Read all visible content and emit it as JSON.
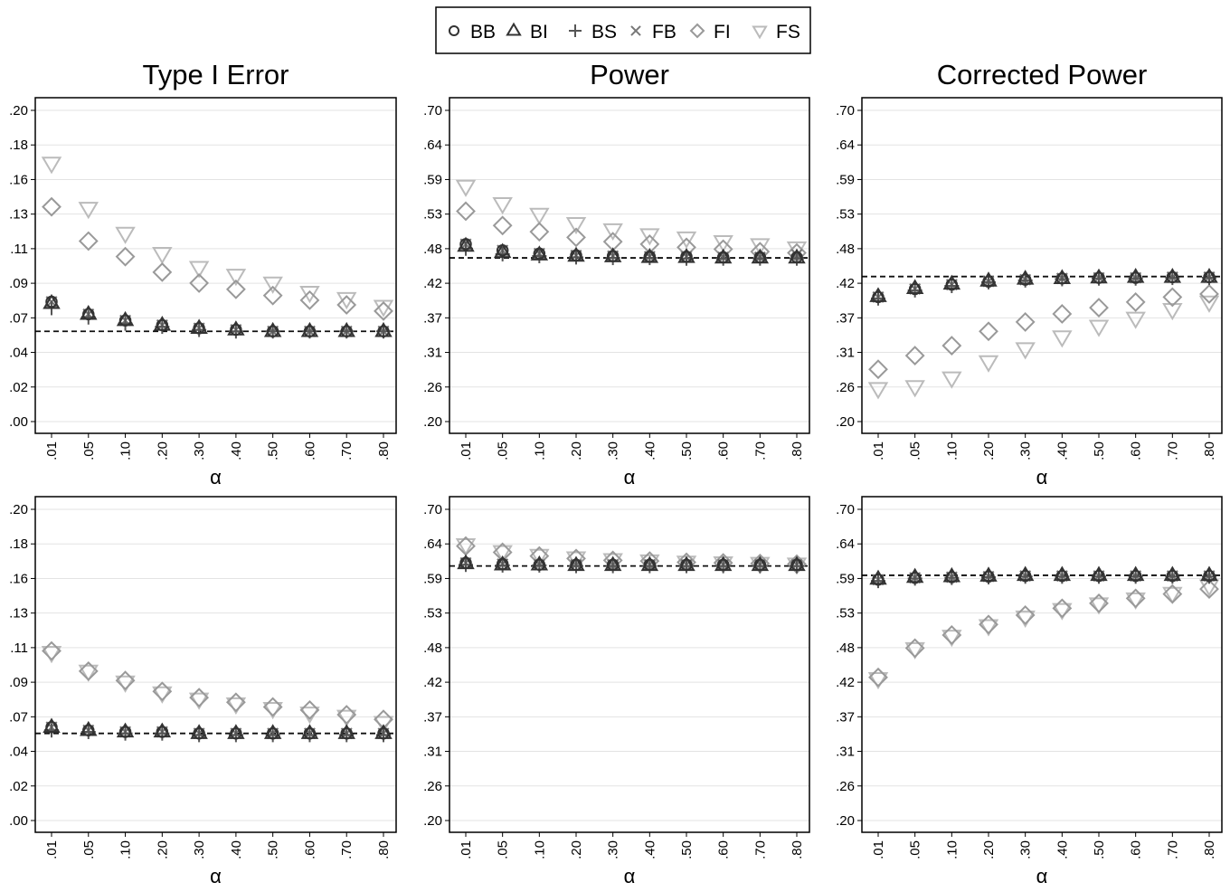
{
  "legend": {
    "placement": "top-center",
    "entries": [
      {
        "label": "BB",
        "marker": "circle-icon",
        "color": "#333333"
      },
      {
        "label": "BI",
        "marker": "triangle-icon",
        "color": "#333333"
      },
      {
        "label": "BS",
        "marker": "plus-icon",
        "color": "#555555"
      },
      {
        "label": "FB",
        "marker": "x-icon",
        "color": "#777777"
      },
      {
        "label": "FI",
        "marker": "diamond-icon",
        "color": "#999999"
      },
      {
        "label": "FS",
        "marker": "triangle-down-icon",
        "color": "#bbbbbb"
      }
    ]
  },
  "chart_data": [
    {
      "type": "scatter",
      "title": "Type I Error",
      "xlabel": "α",
      "categories": [
        ".01",
        ".05",
        ".10",
        ".20",
        ".30",
        ".40",
        ".50",
        ".60",
        ".70",
        ".80"
      ],
      "y_ticks": [
        ".00",
        ".02",
        ".04",
        ".07",
        ".09",
        ".11",
        ".13",
        ".16",
        ".18",
        ".20"
      ],
      "ylim": [
        0,
        0.2
      ],
      "grid": true,
      "reference_line": 0.058,
      "series": [
        {
          "name": "BB",
          "values": [
            0.077,
            0.069,
            0.065,
            0.062,
            0.06,
            0.059,
            0.058,
            0.058,
            0.058,
            0.058
          ]
        },
        {
          "name": "BI",
          "values": [
            0.076,
            0.069,
            0.065,
            0.062,
            0.06,
            0.059,
            0.058,
            0.058,
            0.058,
            0.058
          ]
        },
        {
          "name": "BS",
          "values": [
            0.073,
            0.067,
            0.063,
            0.061,
            0.059,
            0.058,
            0.058,
            0.058,
            0.058,
            0.058
          ]
        },
        {
          "name": "FB",
          "values": [
            0.077,
            0.069,
            0.065,
            0.062,
            0.06,
            0.059,
            0.058,
            0.058,
            0.058,
            0.058
          ]
        },
        {
          "name": "FI",
          "values": [
            0.138,
            0.116,
            0.106,
            0.096,
            0.089,
            0.085,
            0.081,
            0.078,
            0.075,
            0.071
          ]
        },
        {
          "name": "FS",
          "values": [
            0.166,
            0.137,
            0.121,
            0.108,
            0.099,
            0.094,
            0.089,
            0.083,
            0.079,
            0.074
          ]
        }
      ]
    },
    {
      "type": "scatter",
      "title": "Power",
      "xlabel": "α",
      "categories": [
        ".01",
        ".05",
        ".10",
        ".20",
        ".30",
        ".40",
        ".50",
        ".60",
        ".70",
        ".80"
      ],
      "y_ticks": [
        ".20",
        ".26",
        ".31",
        ".37",
        ".42",
        ".48",
        ".53",
        ".59",
        ".64",
        ".70"
      ],
      "ylim": [
        0.2,
        0.7
      ],
      "grid": true,
      "reference_line": 0.463,
      "series": [
        {
          "name": "BB",
          "values": [
            0.485,
            0.475,
            0.47,
            0.467,
            0.466,
            0.465,
            0.465,
            0.464,
            0.464,
            0.464
          ]
        },
        {
          "name": "BI",
          "values": [
            0.482,
            0.472,
            0.468,
            0.466,
            0.465,
            0.464,
            0.464,
            0.463,
            0.463,
            0.463
          ]
        },
        {
          "name": "BS",
          "values": [
            0.478,
            0.469,
            0.466,
            0.464,
            0.463,
            0.463,
            0.462,
            0.462,
            0.462,
            0.462
          ]
        },
        {
          "name": "FB",
          "values": [
            0.485,
            0.475,
            0.47,
            0.467,
            0.466,
            0.465,
            0.465,
            0.464,
            0.464,
            0.468
          ]
        },
        {
          "name": "FI",
          "values": [
            0.538,
            0.515,
            0.505,
            0.496,
            0.489,
            0.485,
            0.48,
            0.477,
            0.473,
            0.471
          ]
        },
        {
          "name": "FS",
          "values": [
            0.578,
            0.55,
            0.533,
            0.518,
            0.508,
            0.5,
            0.495,
            0.489,
            0.484,
            0.479
          ]
        }
      ]
    },
    {
      "type": "scatter",
      "title": "Corrected Power",
      "xlabel": "α",
      "categories": [
        ".01",
        ".05",
        ".10",
        ".20",
        ".30",
        ".40",
        ".50",
        ".60",
        ".70",
        ".80"
      ],
      "y_ticks": [
        ".20",
        ".26",
        ".31",
        ".37",
        ".42",
        ".48",
        ".53",
        ".59",
        ".64",
        ".70"
      ],
      "ylim": [
        0.2,
        0.7
      ],
      "grid": true,
      "reference_line": 0.433,
      "series": [
        {
          "name": "BB",
          "values": [
            0.4,
            0.413,
            0.42,
            0.425,
            0.428,
            0.43,
            0.431,
            0.431,
            0.432,
            0.432
          ]
        },
        {
          "name": "BI",
          "values": [
            0.401,
            0.414,
            0.421,
            0.426,
            0.429,
            0.43,
            0.431,
            0.432,
            0.432,
            0.432
          ]
        },
        {
          "name": "BS",
          "values": [
            0.398,
            0.411,
            0.418,
            0.424,
            0.427,
            0.429,
            0.43,
            0.43,
            0.431,
            0.431
          ]
        },
        {
          "name": "FB",
          "values": [
            0.4,
            0.413,
            0.42,
            0.425,
            0.428,
            0.43,
            0.431,
            0.431,
            0.432,
            0.432
          ]
        },
        {
          "name": "FI",
          "values": [
            0.284,
            0.306,
            0.322,
            0.345,
            0.36,
            0.373,
            0.383,
            0.392,
            0.4,
            0.405
          ]
        },
        {
          "name": "FS",
          "values": [
            0.253,
            0.256,
            0.27,
            0.296,
            0.317,
            0.336,
            0.353,
            0.366,
            0.38,
            0.392
          ]
        }
      ]
    },
    {
      "type": "scatter",
      "title": "",
      "xlabel": "α",
      "categories": [
        ".01",
        ".05",
        ".10",
        ".20",
        ".30",
        ".40",
        ".50",
        ".60",
        ".70",
        ".80"
      ],
      "y_ticks": [
        ".00",
        ".02",
        ".04",
        ".07",
        ".09",
        ".11",
        ".13",
        ".16",
        ".18",
        ".20"
      ],
      "ylim": [
        0,
        0.2
      ],
      "grid": true,
      "reference_line": 0.056,
      "series": [
        {
          "name": "BB",
          "values": [
            0.06,
            0.058,
            0.057,
            0.057,
            0.056,
            0.056,
            0.056,
            0.056,
            0.056,
            0.056
          ]
        },
        {
          "name": "BI",
          "values": [
            0.06,
            0.058,
            0.057,
            0.057,
            0.056,
            0.056,
            0.056,
            0.056,
            0.056,
            0.056
          ]
        },
        {
          "name": "BS",
          "values": [
            0.058,
            0.057,
            0.056,
            0.056,
            0.055,
            0.055,
            0.055,
            0.055,
            0.055,
            0.055
          ]
        },
        {
          "name": "FB",
          "values": [
            0.06,
            0.058,
            0.057,
            0.057,
            0.056,
            0.056,
            0.056,
            0.056,
            0.056,
            0.056
          ]
        },
        {
          "name": "FI",
          "values": [
            0.109,
            0.096,
            0.09,
            0.083,
            0.079,
            0.076,
            0.073,
            0.071,
            0.068,
            0.065
          ]
        },
        {
          "name": "FS",
          "values": [
            0.108,
            0.096,
            0.089,
            0.082,
            0.078,
            0.075,
            0.072,
            0.069,
            0.067,
            0.063
          ]
        }
      ]
    },
    {
      "type": "scatter",
      "title": "",
      "xlabel": "α",
      "categories": [
        ".01",
        ".05",
        ".10",
        ".20",
        ".30",
        ".40",
        ".50",
        ".60",
        ".70",
        ".80"
      ],
      "y_ticks": [
        ".20",
        ".26",
        ".31",
        ".37",
        ".42",
        ".48",
        ".53",
        ".59",
        ".64",
        ".70"
      ],
      "ylim": [
        0.2,
        0.7
      ],
      "grid": true,
      "reference_line": 0.609,
      "series": [
        {
          "name": "BB",
          "values": [
            0.614,
            0.612,
            0.611,
            0.611,
            0.611,
            0.611,
            0.611,
            0.611,
            0.611,
            0.611
          ]
        },
        {
          "name": "BI",
          "values": [
            0.613,
            0.611,
            0.611,
            0.61,
            0.61,
            0.61,
            0.61,
            0.61,
            0.61,
            0.61
          ]
        },
        {
          "name": "BS",
          "values": [
            0.611,
            0.61,
            0.61,
            0.609,
            0.609,
            0.609,
            0.609,
            0.609,
            0.609,
            0.609
          ]
        },
        {
          "name": "FB",
          "values": [
            0.614,
            0.612,
            0.611,
            0.611,
            0.611,
            0.611,
            0.611,
            0.611,
            0.611,
            0.611
          ]
        },
        {
          "name": "FI",
          "values": [
            0.641,
            0.631,
            0.625,
            0.621,
            0.618,
            0.617,
            0.615,
            0.614,
            0.613,
            0.612
          ]
        },
        {
          "name": "FS",
          "values": [
            0.643,
            0.632,
            0.626,
            0.622,
            0.619,
            0.617,
            0.615,
            0.614,
            0.613,
            0.612
          ]
        }
      ]
    },
    {
      "type": "scatter",
      "title": "",
      "xlabel": "α",
      "categories": [
        ".01",
        ".05",
        ".10",
        ".20",
        ".30",
        ".40",
        ".50",
        ".60",
        ".70",
        ".80"
      ],
      "y_ticks": [
        ".20",
        ".26",
        ".31",
        ".37",
        ".42",
        ".48",
        ".53",
        ".59",
        ".64",
        ".70"
      ],
      "ylim": [
        0.2,
        0.7
      ],
      "grid": true,
      "reference_line": 0.594,
      "series": [
        {
          "name": "BB",
          "values": [
            0.587,
            0.59,
            0.591,
            0.592,
            0.593,
            0.593,
            0.593,
            0.593,
            0.593,
            0.593
          ]
        },
        {
          "name": "BI",
          "values": [
            0.588,
            0.591,
            0.592,
            0.593,
            0.594,
            0.594,
            0.594,
            0.594,
            0.594,
            0.594
          ]
        },
        {
          "name": "BS",
          "values": [
            0.585,
            0.589,
            0.59,
            0.591,
            0.592,
            0.592,
            0.592,
            0.592,
            0.592,
            0.592
          ]
        },
        {
          "name": "FB",
          "values": [
            0.587,
            0.59,
            0.591,
            0.592,
            0.593,
            0.593,
            0.593,
            0.593,
            0.593,
            0.593
          ]
        },
        {
          "name": "FI",
          "values": [
            0.43,
            0.477,
            0.498,
            0.515,
            0.53,
            0.541,
            0.549,
            0.557,
            0.564,
            0.572
          ]
        },
        {
          "name": "FS",
          "values": [
            0.428,
            0.476,
            0.496,
            0.513,
            0.527,
            0.539,
            0.548,
            0.556,
            0.565,
            0.577
          ]
        }
      ]
    }
  ]
}
